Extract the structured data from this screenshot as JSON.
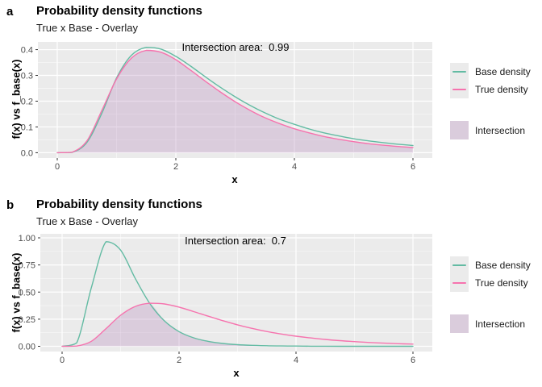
{
  "panels": [
    {
      "tag": "a",
      "title": "Probability density functions",
      "subtitle": "True x Base - Overlay",
      "annotation": "Intersection area:  0.99",
      "x_axis_title": "x",
      "y_axis_title": "f(x) vs f_base(x)",
      "legend": {
        "base": "Base density",
        "true": "True density",
        "intersection": "Intersection"
      }
    },
    {
      "tag": "b",
      "title": "Probability density functions",
      "subtitle": "True x Base - Overlay",
      "annotation": "Intersection area:  0.7",
      "x_axis_title": "x",
      "y_axis_title": "f(x) vs f_base(x)",
      "legend": {
        "base": "Base density",
        "true": "True density",
        "intersection": "Intersection"
      }
    }
  ],
  "colors": {
    "base_line": "#63BBA3",
    "true_line": "#F673AE",
    "intersection_fill": "#B78BBE",
    "intersection_alpha": 0.32,
    "panel_bg": "#EBEBEB",
    "grid": "#FFFFFF",
    "tick_mark": "#333333",
    "tick_label": "#4D4D4D"
  },
  "chart_data": [
    {
      "type": "area",
      "title": "Probability density functions",
      "subtitle": "True x Base - Overlay",
      "annotation": "Intersection area:  0.99",
      "intersection_area": 0.99,
      "xlabel": "x",
      "ylabel": "f(x) vs f_base(x)",
      "xlim": [
        -0.33,
        6.33
      ],
      "ylim": [
        -0.02,
        0.43
      ],
      "grid": true,
      "legend_position": "right",
      "x_major_ticks": [
        0,
        2,
        4,
        6
      ],
      "x_tick_labels": [
        "0",
        "2",
        "4",
        "6"
      ],
      "x_minor_ticks": [
        1,
        3,
        5
      ],
      "y_major_ticks": [
        0,
        0.1,
        0.2,
        0.3,
        0.4
      ],
      "y_tick_labels": [
        "0.0",
        "0.1",
        "0.2",
        "0.3",
        "0.4"
      ],
      "y_minor_ticks": [
        0.05,
        0.15,
        0.25,
        0.35
      ],
      "x": [
        0,
        0.25,
        0.5,
        0.75,
        1,
        1.25,
        1.5,
        1.75,
        2,
        2.25,
        2.5,
        2.75,
        3,
        3.25,
        3.5,
        3.75,
        4,
        4.25,
        4.5,
        4.75,
        5,
        5.25,
        5.5,
        5.75,
        6
      ],
      "series": [
        {
          "name": "Base density",
          "values": [
            0,
            0.001,
            0.04,
            0.152,
            0.29,
            0.378,
            0.409,
            0.402,
            0.374,
            0.336,
            0.294,
            0.254,
            0.217,
            0.184,
            0.155,
            0.13,
            0.11,
            0.092,
            0.077,
            0.065,
            0.054,
            0.046,
            0.039,
            0.033,
            0.028
          ]
        },
        {
          "name": "True density",
          "values": [
            0,
            0.002,
            0.046,
            0.163,
            0.286,
            0.367,
            0.397,
            0.39,
            0.361,
            0.32,
            0.277,
            0.236,
            0.198,
            0.165,
            0.136,
            0.113,
            0.093,
            0.077,
            0.063,
            0.052,
            0.043,
            0.035,
            0.029,
            0.024,
            0.02
          ]
        }
      ]
    },
    {
      "type": "area",
      "title": "Probability density functions",
      "subtitle": "True x Base - Overlay",
      "annotation": "Intersection area:  0.7",
      "intersection_area": 0.7,
      "xlabel": "x",
      "ylabel": "f(x) vs f_base(x)",
      "xlim": [
        -0.33,
        6.33
      ],
      "ylim": [
        -0.05,
        1.04
      ],
      "grid": true,
      "legend_position": "right",
      "x_major_ticks": [
        0,
        2,
        4,
        6
      ],
      "x_tick_labels": [
        "0",
        "2",
        "4",
        "6"
      ],
      "x_minor_ticks": [
        1,
        3,
        5
      ],
      "y_major_ticks": [
        0,
        0.25,
        0.5,
        0.75,
        1
      ],
      "y_tick_labels": [
        "0.00",
        "0.25",
        "0.50",
        "0.75",
        "1.00"
      ],
      "y_minor_ticks": [
        0.125,
        0.375,
        0.625,
        0.875
      ],
      "x": [
        0,
        0.25,
        0.5,
        0.75,
        1,
        1.25,
        1.5,
        1.75,
        2,
        2.25,
        2.5,
        2.75,
        3,
        3.25,
        3.5,
        3.75,
        4,
        4.25,
        4.5,
        4.75,
        5,
        5.25,
        5.5,
        5.75,
        6
      ],
      "series": [
        {
          "name": "Base density",
          "values": [
            0,
            0.031,
            0.541,
            0.964,
            0.887,
            0.627,
            0.394,
            0.234,
            0.135,
            0.078,
            0.045,
            0.026,
            0.015,
            0.009,
            0.005,
            0.003,
            0.002,
            0.001,
            0.001,
            0,
            0,
            0,
            0,
            0,
            0
          ]
        },
        {
          "name": "True density",
          "values": [
            0,
            0.002,
            0.046,
            0.163,
            0.286,
            0.367,
            0.397,
            0.39,
            0.361,
            0.32,
            0.277,
            0.236,
            0.198,
            0.165,
            0.136,
            0.113,
            0.093,
            0.077,
            0.063,
            0.052,
            0.043,
            0.035,
            0.029,
            0.024,
            0.02
          ]
        }
      ]
    }
  ]
}
